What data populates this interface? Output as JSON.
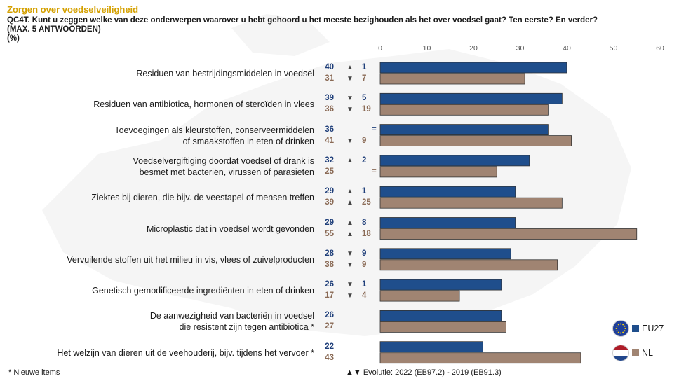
{
  "header": {
    "title": "Zorgen over voedselveiligheid",
    "question_line1": "QC4T. Kunt u zeggen welke van deze onderwerpen waarover u hebt gehoord u het meeste bezighouden als het over voedsel gaat? Ten eerste? En verder?",
    "question_line2": "(MAX. 5 ANTWOORDEN)",
    "question_line3": "(%)"
  },
  "colors": {
    "eu": "#1f4e8c",
    "nl": "#a08472",
    "title": "#d4a000"
  },
  "legend": {
    "eu_label": "EU27",
    "nl_label": "NL"
  },
  "footnote": "* Nieuwe items",
  "evolution_legend": "▲▼ Evolutie: 2022 (EB97.2) - 2019 (EB91.3)",
  "chart_data": {
    "type": "bar",
    "orientation": "horizontal",
    "xlim": [
      0,
      60
    ],
    "ticks": [
      "0",
      "10",
      "20",
      "30",
      "40",
      "50",
      "60"
    ],
    "categories": [
      [
        "Residuen van bestrijdingsmiddelen in voedsel"
      ],
      [
        "Residuen van antibiotica, hormonen of steroïden in vlees"
      ],
      [
        "Toevoegingen als kleurstoffen, conserveermiddelen",
        "of smaakstoffen in eten of drinken"
      ],
      [
        "Voedselvergiftiging doordat voedsel of drank is",
        "besmet met bacteriën, virussen of parasieten"
      ],
      [
        "Ziektes bij dieren, die bijv. de veestapel of mensen treffen"
      ],
      [
        "Microplastic dat in voedsel wordt gevonden"
      ],
      [
        "Vervuilende stoffen uit het milieu in vis, vlees of zuivelproducten"
      ],
      [
        "Genetisch gemodificeerde ingrediënten in eten of drinken"
      ],
      [
        "De aanwezigheid van bacteriën in voedsel",
        "die resistent zijn tegen antibiotica *"
      ],
      [
        "Het welzijn van dieren uit de veehouderij, bijv. tijdens het vervoer *"
      ]
    ],
    "series": [
      {
        "name": "EU27",
        "values": [
          40,
          39,
          36,
          32,
          29,
          29,
          28,
          26,
          26,
          22
        ],
        "evolution": [
          {
            "dir": "up",
            "value": "1"
          },
          {
            "dir": "down",
            "value": "5"
          },
          {
            "dir": "",
            "value": "="
          },
          {
            "dir": "up",
            "value": "2"
          },
          {
            "dir": "up",
            "value": "1"
          },
          {
            "dir": "up",
            "value": "8"
          },
          {
            "dir": "down",
            "value": "9"
          },
          {
            "dir": "down",
            "value": "1"
          },
          {
            "dir": "",
            "value": ""
          },
          {
            "dir": "",
            "value": ""
          }
        ]
      },
      {
        "name": "NL",
        "values": [
          31,
          36,
          41,
          25,
          39,
          55,
          38,
          17,
          27,
          43
        ],
        "evolution": [
          {
            "dir": "down",
            "value": "7"
          },
          {
            "dir": "down",
            "value": "19"
          },
          {
            "dir": "down",
            "value": "9"
          },
          {
            "dir": "",
            "value": "="
          },
          {
            "dir": "up",
            "value": "25"
          },
          {
            "dir": "up",
            "value": "18"
          },
          {
            "dir": "down",
            "value": "9"
          },
          {
            "dir": "down",
            "value": "4"
          },
          {
            "dir": "",
            "value": ""
          },
          {
            "dir": "",
            "value": ""
          }
        ]
      }
    ]
  }
}
